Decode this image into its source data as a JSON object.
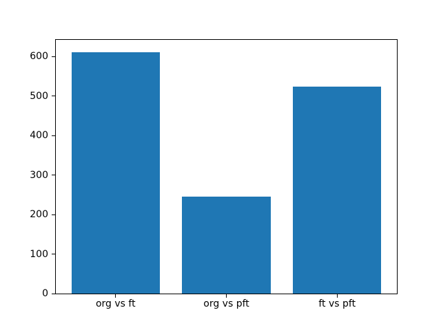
{
  "figure": {
    "background": "#ffffff"
  },
  "chart_data": {
    "type": "bar",
    "categories": [
      "org vs ft",
      "org vs pft",
      "ft vs pft"
    ],
    "values": [
      612,
      245,
      525
    ],
    "title": "",
    "xlabel": "",
    "ylabel": "",
    "yticks": [
      0,
      100,
      200,
      300,
      400,
      500,
      600
    ],
    "ylim": [
      0,
      642.6
    ],
    "xlim": [
      -0.54,
      2.54
    ],
    "bar_width": 0.8,
    "bar_color": "#1f77b4",
    "axis_color": "#000000",
    "tick_label_color": "#000000",
    "grid": false,
    "legend": null
  }
}
